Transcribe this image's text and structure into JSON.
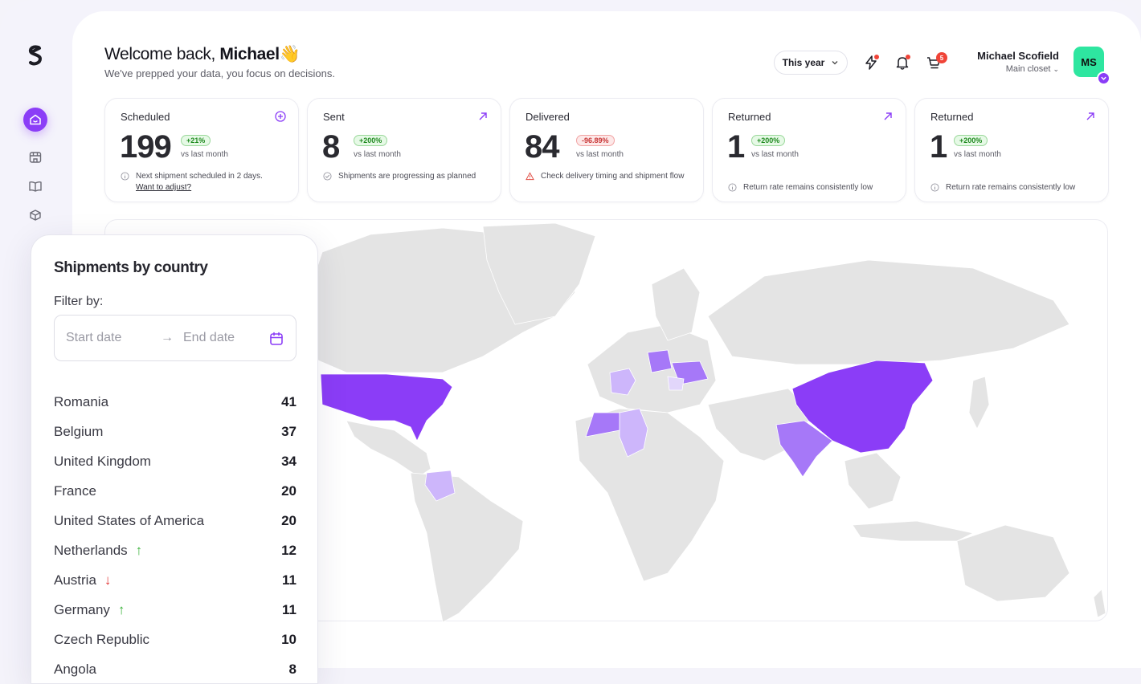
{
  "header": {
    "welcome_prefix": "Welcome back,",
    "welcome_name": "Michael",
    "wave_emoji": "👋",
    "subtitle": "We've prepped your data, you focus on decisions.",
    "period": "This year",
    "cart_count": "5",
    "user_name": "Michael Scofield",
    "user_sub": "Main closet",
    "avatar_initials": "MS"
  },
  "sidebar": {
    "items": [
      {
        "icon": "home-icon"
      },
      {
        "icon": "store-icon"
      },
      {
        "icon": "book-icon"
      },
      {
        "icon": "box-icon"
      }
    ]
  },
  "cards": [
    {
      "title": "Scheduled",
      "value": "199",
      "change": "+21%",
      "direction": "up",
      "vs": "vs last month",
      "note": "Next shipment scheduled in 2 days.",
      "note_link": "Want to adjust?",
      "corner": "plus-circle-icon",
      "note_icon": "info-icon"
    },
    {
      "title": "Sent",
      "value": "8",
      "change": "+200%",
      "direction": "up",
      "vs": "vs last month",
      "note": "Shipments are progressing as planned",
      "note_link": "",
      "corner": "arrow-up-right-icon",
      "note_icon": "check-circle-icon"
    },
    {
      "title": "Delivered",
      "value": "84",
      "change": "-96.89%",
      "direction": "down",
      "vs": "vs last month",
      "note": "Check delivery timing and shipment flow",
      "note_link": "",
      "corner": "",
      "note_icon": "warning-icon"
    },
    {
      "title": "Returned",
      "value": "1",
      "change": "+200%",
      "direction": "up",
      "vs": "vs last month",
      "note": "Return rate remains consistently low",
      "note_link": "",
      "corner": "arrow-up-right-icon",
      "note_icon": "info-icon"
    },
    {
      "title": "Returned",
      "value": "1",
      "change": "+200%",
      "direction": "up",
      "vs": "vs last month",
      "note": "Return rate remains consistently low",
      "note_link": "",
      "corner": "arrow-up-right-icon",
      "note_icon": "info-icon"
    }
  ],
  "country_panel": {
    "title": "Shipments by country",
    "filter_label": "Filter by:",
    "start_placeholder": "Start date",
    "arrow": "→",
    "end_placeholder": "End date",
    "rows": [
      {
        "name": "Romania",
        "count": "41",
        "trend": ""
      },
      {
        "name": "Belgium",
        "count": "37",
        "trend": ""
      },
      {
        "name": "United Kingdom",
        "count": "34",
        "trend": ""
      },
      {
        "name": "France",
        "count": "20",
        "trend": ""
      },
      {
        "name": "United States of America",
        "count": "20",
        "trend": ""
      },
      {
        "name": "Netherlands",
        "count": "12",
        "trend": "up"
      },
      {
        "name": "Austria",
        "count": "11",
        "trend": "down"
      },
      {
        "name": "Germany",
        "count": "11",
        "trend": "up"
      },
      {
        "name": "Czech Republic",
        "count": "10",
        "trend": ""
      },
      {
        "name": "Angola",
        "count": "8",
        "trend": ""
      }
    ]
  },
  "colors": {
    "accent": "#8b3df7",
    "map_land": "#e4e4e4",
    "map_high": "#8b3df7",
    "map_mid": "#a678f8",
    "map_low": "#cdb6fb",
    "map_faint": "#e2d6fb",
    "badge_red": "#f04438",
    "avatar_green": "#2ee6a0"
  }
}
